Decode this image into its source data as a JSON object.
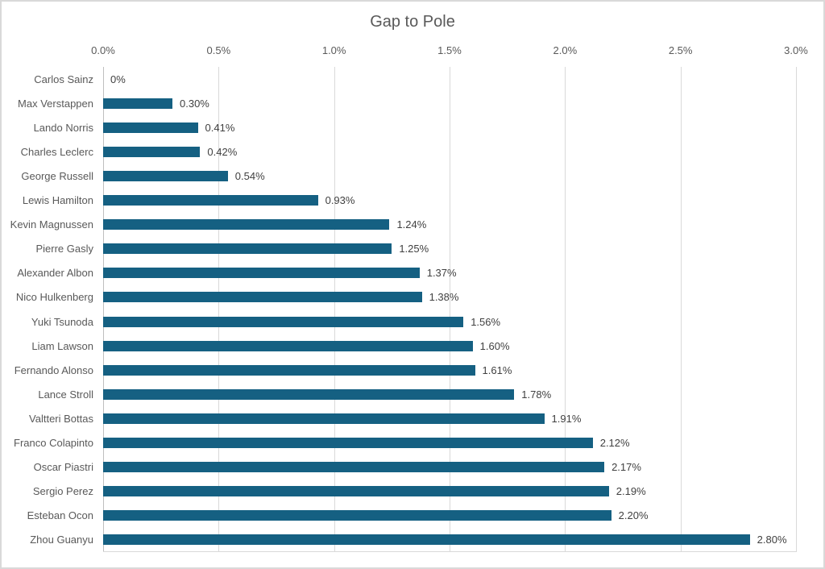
{
  "chart_data": {
    "type": "bar",
    "orientation": "horizontal",
    "title": "Gap to Pole",
    "categories": [
      "Carlos Sainz",
      "Max Verstappen",
      "Lando Norris",
      "Charles Leclerc",
      "George Russell",
      "Lewis Hamilton",
      "Kevin Magnussen",
      "Pierre Gasly",
      "Alexander Albon",
      "Nico Hulkenberg",
      "Yuki Tsunoda",
      "Liam Lawson",
      "Fernando Alonso",
      "Lance Stroll",
      "Valtteri Bottas",
      "Franco Colapinto",
      "Oscar Piastri",
      "Sergio Perez",
      "Esteban Ocon",
      "Zhou Guanyu"
    ],
    "values": [
      0,
      0.3,
      0.41,
      0.42,
      0.54,
      0.93,
      1.24,
      1.25,
      1.37,
      1.38,
      1.56,
      1.6,
      1.61,
      1.78,
      1.91,
      2.12,
      2.17,
      2.19,
      2.2,
      2.8
    ],
    "data_labels": [
      "0%",
      "0.30%",
      "0.41%",
      "0.42%",
      "0.54%",
      "0.93%",
      "1.24%",
      "1.25%",
      "1.37%",
      "1.38%",
      "1.56%",
      "1.60%",
      "1.61%",
      "1.78%",
      "1.91%",
      "2.12%",
      "2.17%",
      "2.19%",
      "2.20%",
      "2.80%"
    ],
    "x_ticks": [
      "0.0%",
      "0.5%",
      "1.0%",
      "1.5%",
      "2.0%",
      "2.5%",
      "3.0%"
    ],
    "xlim": [
      0,
      3.0
    ],
    "xlabel": "",
    "ylabel": "",
    "legend": "none",
    "grid": "vertical",
    "axis_position": "top",
    "colors": {
      "bar_fill": "#156082",
      "gridline": "#D9D9D9",
      "axis_line": "#BFBFBF",
      "title_text": "#595959",
      "tick_text": "#595959",
      "category_text": "#595959",
      "data_label_text": "#404040",
      "frame_border": "#D9D9D9",
      "background": "#FFFFFF"
    }
  }
}
